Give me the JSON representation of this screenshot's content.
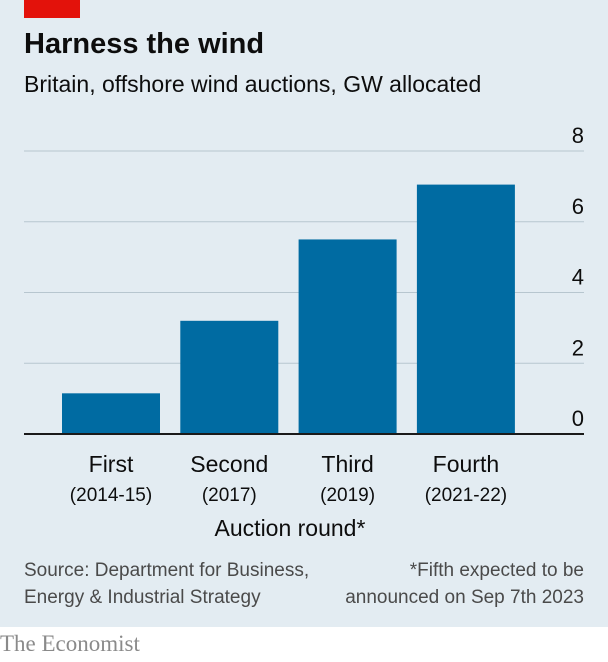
{
  "header": {
    "title": "Harness the wind",
    "subtitle": "Britain, offshore wind auctions, GW allocated"
  },
  "chart_data": {
    "type": "bar",
    "categories": [
      "First",
      "Second",
      "Third",
      "Fourth"
    ],
    "category_sublabels": [
      "(2014-15)",
      "(2017)",
      "(2019)",
      "(2021-22)"
    ],
    "values": [
      1.15,
      3.2,
      5.5,
      7.05
    ],
    "xlabel": "Auction round*",
    "ylabel": "",
    "ylim": [
      0,
      8
    ],
    "yticks": [
      0,
      2,
      4,
      6,
      8
    ],
    "grid": true,
    "y_axis_side": "right",
    "bar_color": "#006ba2"
  },
  "footer": {
    "source_line1": "Source: Department for Business,",
    "source_line2": "Energy & Industrial Strategy",
    "note_line1": "*Fifth expected to be",
    "note_line2": "announced on Sep 7th 2023",
    "brand": "The Economist"
  },
  "colors": {
    "accent": "#e3120b",
    "background": "#e3ecf2",
    "bar": "#006ba2"
  }
}
